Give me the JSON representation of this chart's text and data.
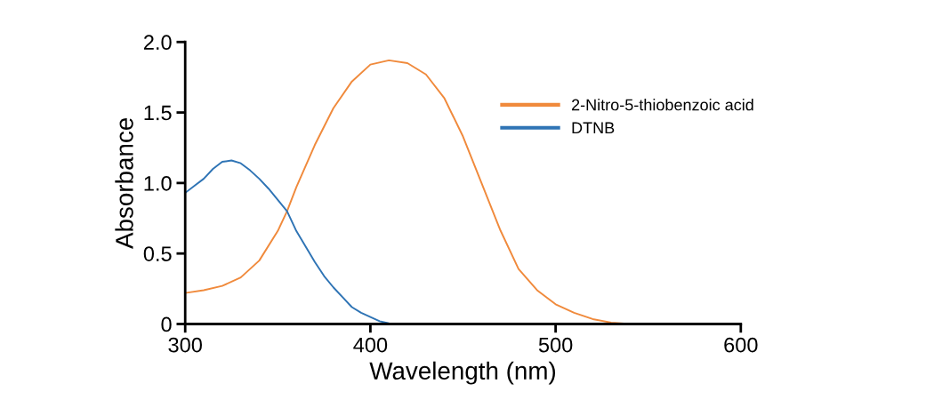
{
  "chart_data": {
    "type": "line",
    "xlabel": "Wavelength (nm)",
    "ylabel": "Absorbance",
    "xlim": [
      300,
      600
    ],
    "xticks": [
      300,
      400,
      500,
      600
    ],
    "ylim": [
      0,
      2.0
    ],
    "yticks": [
      {
        "value": 0,
        "label": "0"
      },
      {
        "value": 0.5,
        "label": "0.5"
      },
      {
        "value": 1.0,
        "label": "1.0"
      },
      {
        "value": 1.5,
        "label": "1.5"
      },
      {
        "value": 2.0,
        "label": "2.0"
      }
    ],
    "grid": false,
    "legend": "top right",
    "series": [
      {
        "name": "2-Nitro-5-thiobenzoic acid",
        "color": "#f08a3c",
        "x": [
          300,
          310,
          320,
          330,
          340,
          350,
          355,
          360,
          370,
          380,
          390,
          400,
          410,
          420,
          430,
          440,
          450,
          460,
          470,
          480,
          490,
          500,
          510,
          520,
          530,
          540
        ],
        "values": [
          0.22,
          0.24,
          0.27,
          0.33,
          0.45,
          0.66,
          0.8,
          0.97,
          1.27,
          1.53,
          1.72,
          1.84,
          1.87,
          1.85,
          1.77,
          1.6,
          1.33,
          1.0,
          0.67,
          0.39,
          0.24,
          0.14,
          0.08,
          0.035,
          0.01,
          0
        ]
      },
      {
        "name": "DTNB",
        "color": "#2f74b5",
        "x": [
          300,
          305,
          310,
          315,
          320,
          325,
          330,
          335,
          340,
          345,
          350,
          355,
          360,
          365,
          370,
          375,
          380,
          385,
          390,
          395,
          400,
          405,
          410,
          415
        ],
        "values": [
          0.93,
          0.98,
          1.03,
          1.1,
          1.15,
          1.16,
          1.14,
          1.09,
          1.03,
          0.96,
          0.88,
          0.8,
          0.66,
          0.55,
          0.44,
          0.34,
          0.26,
          0.19,
          0.12,
          0.08,
          0.05,
          0.02,
          0.005,
          0
        ]
      }
    ]
  }
}
